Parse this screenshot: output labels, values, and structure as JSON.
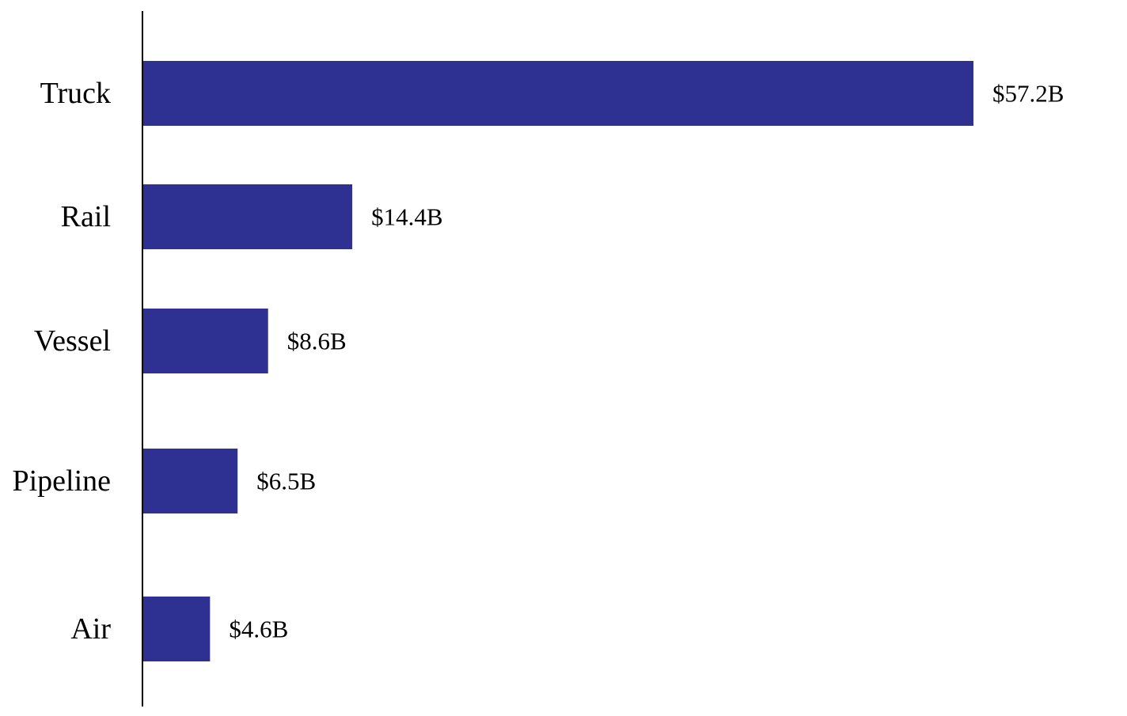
{
  "chart_data": {
    "type": "bar",
    "orientation": "horizontal",
    "categories": [
      "Truck",
      "Rail",
      "Vessel",
      "Pipeline",
      "Air"
    ],
    "values": [
      57.2,
      14.4,
      8.6,
      6.5,
      4.6
    ],
    "value_labels": [
      "$57.2B",
      "$14.4B",
      "$8.6B",
      "$6.5B",
      "$4.6B"
    ],
    "xlim": [
      0,
      57.2
    ],
    "grid": false,
    "legend": "none",
    "bar_color": "#2e3192"
  }
}
